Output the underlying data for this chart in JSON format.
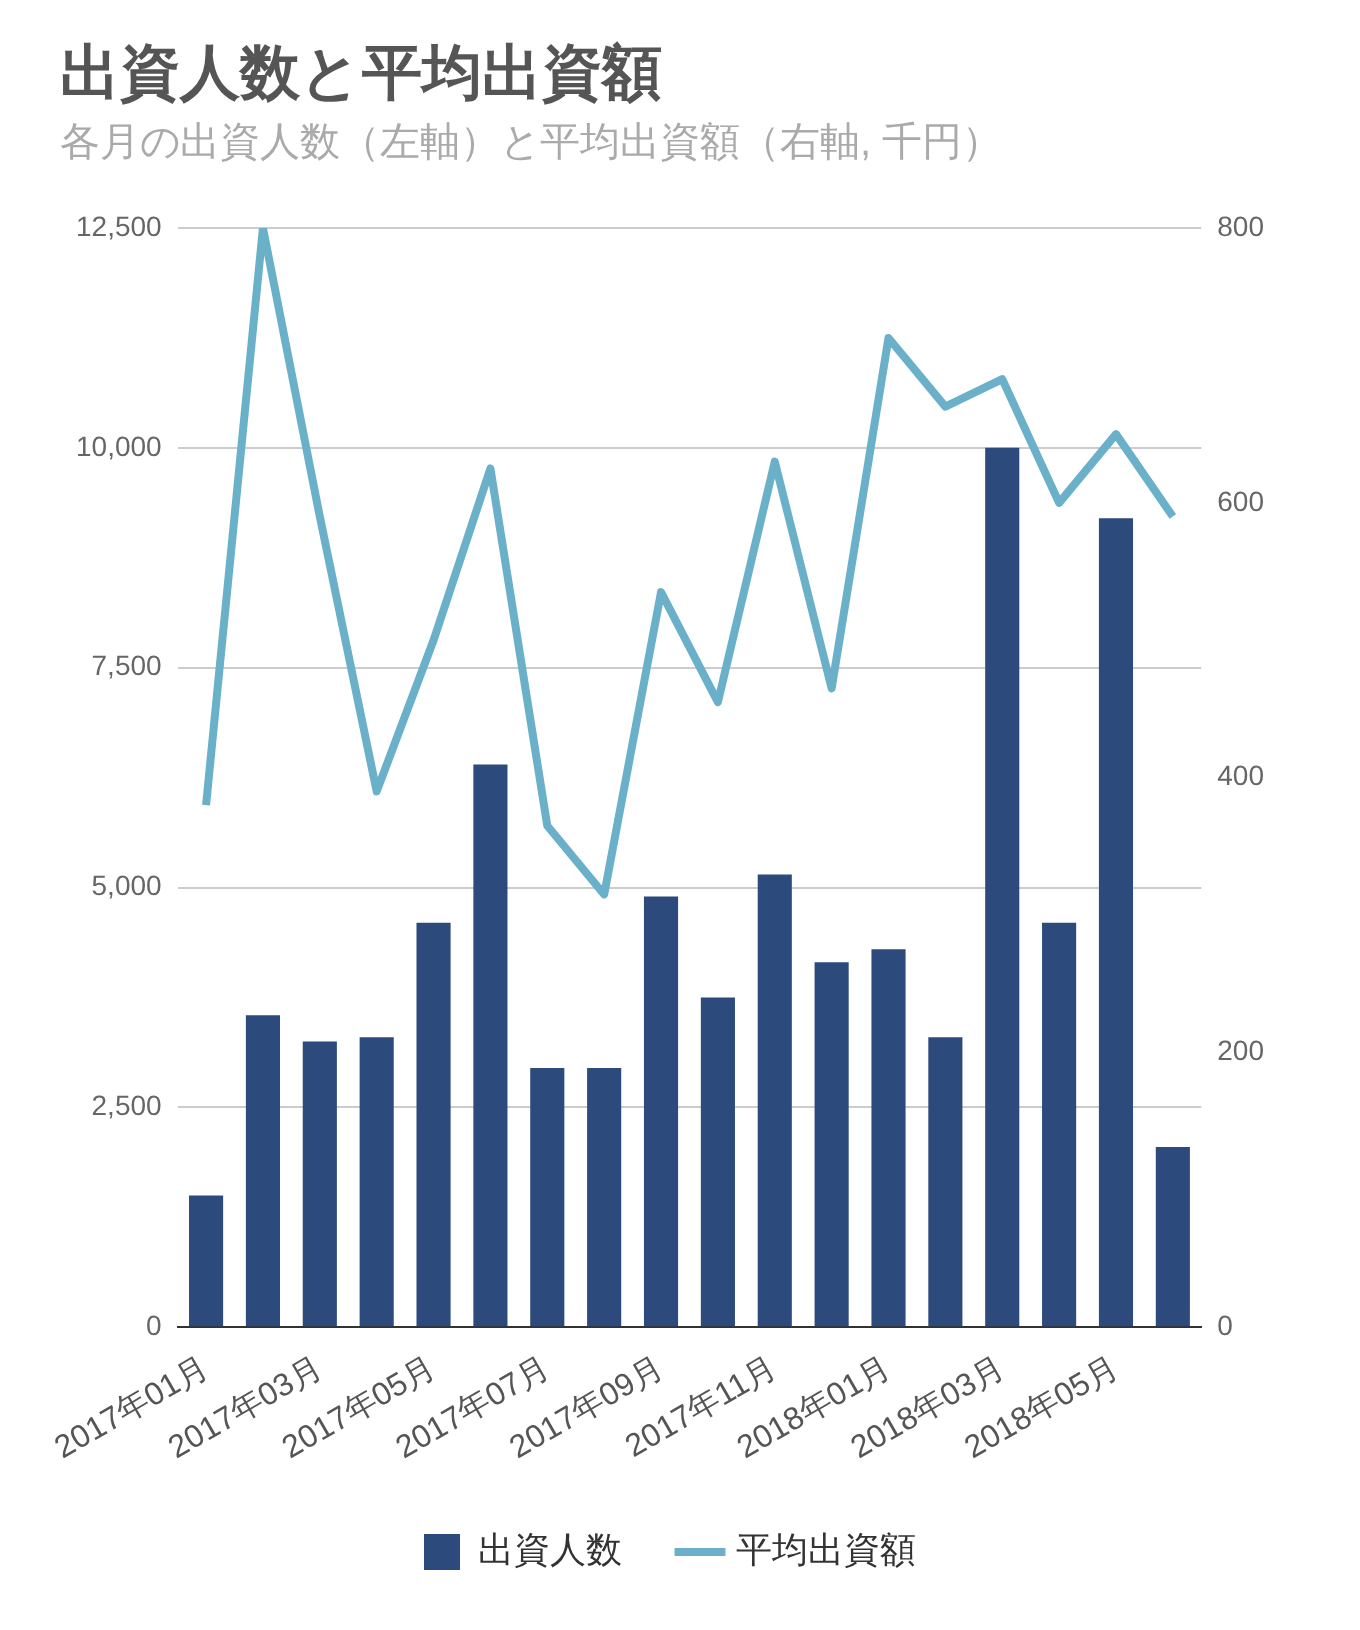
{
  "chart_data": {
    "type": "bar",
    "title": "出資人数と平均出資額",
    "subtitle": "各月の出資人数（左軸）と平均出資額（右軸, 千円）",
    "categories": [
      "2017年01月",
      null,
      "2017年03月",
      null,
      "2017年05月",
      null,
      "2017年07月",
      null,
      "2017年09月",
      null,
      "2017年11月",
      null,
      "2018年01月",
      null,
      "2018年03月",
      null,
      "2018年05月",
      null
    ],
    "series": [
      {
        "name": "出資人数",
        "color": "#2c4a7c",
        "values": [
          1500,
          3550,
          3250,
          3300,
          4600,
          6400,
          2950,
          2950,
          4900,
          3750,
          5150,
          4150,
          4300,
          3300,
          10000,
          4600,
          9200,
          2050
        ]
      },
      {
        "name": "平均出資額",
        "type": "line",
        "axis": "y2",
        "color": "#6ab0c9",
        "values": [
          380,
          800,
          590,
          390,
          500,
          625,
          365,
          315,
          535,
          455,
          630,
          465,
          720,
          670,
          690,
          600,
          650,
          590
        ]
      }
    ],
    "ylim": [
      0,
      12500
    ],
    "yticks": [
      {
        "value": 0,
        "label": "0"
      },
      {
        "value": 2500,
        "label": "2,500"
      },
      {
        "value": 5000,
        "label": "5,000"
      },
      {
        "value": 7500,
        "label": "7,500"
      },
      {
        "value": 10000,
        "label": "10,000"
      },
      {
        "value": 12500,
        "label": "12,500"
      }
    ],
    "y2lim": [
      0,
      800
    ],
    "y2ticks": [
      0,
      200,
      400,
      600,
      800
    ],
    "grid": "y",
    "legend": "bottom",
    "marker": "none",
    "line_style": "solid"
  }
}
